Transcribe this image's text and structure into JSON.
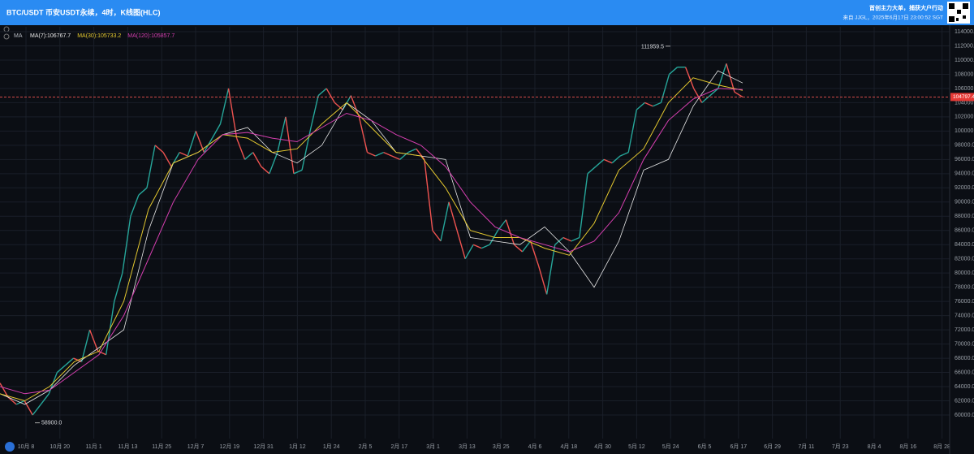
{
  "header": {
    "title": "BTC/USDT 币安USDT永续，4时，K线图(HLC)",
    "promo": "首创主力大单，捕获大户行动",
    "source": "来自 JJGL，2025年6月17日 23:00:52 SGT",
    "indicator": "MA"
  },
  "chart_data": {
    "type": "line",
    "color": "#26a69a",
    "values": [
      64500,
      62500,
      61500,
      62000,
      60000,
      61500,
      63000,
      66000,
      67000,
      68000,
      67500,
      72000,
      69000,
      68500,
      76000,
      80000,
      88000,
      91000,
      92000,
      98000,
      97000,
      95000,
      97000,
      96500,
      100000,
      97000,
      99000,
      101000,
      106000,
      99000,
      96000,
      97000,
      95000,
      94000,
      97000,
      102000,
      94000,
      94500,
      100000,
      105000,
      106000,
      104000,
      103000,
      105000,
      102000,
      97000,
      96500,
      97000,
      96500,
      96000,
      97000,
      97500,
      96000,
      86000,
      84500,
      90000,
      86000,
      82000,
      84000,
      83500,
      84000,
      86000,
      87500,
      84000,
      83000,
      84500,
      81000,
      77000,
      84000,
      85000,
      84500,
      85000,
      94000,
      95000,
      96000,
      95500,
      96500,
      97000,
      103000,
      104000,
      103500,
      104000,
      108000,
      109000,
      109000,
      106000,
      104000,
      105000,
      106000,
      109500,
      105500,
      104797.4
    ],
    "series": [
      {
        "name": "MA(7):106767.7",
        "color": "#e8e8e8",
        "values": [
          63000,
          61500,
          63500,
          67000,
          69500,
          72000,
          86000,
          95500,
          97000,
          99500,
          100500,
          97000,
          95500,
          98000,
          104000,
          101500,
          97000,
          96500,
          96000,
          85000,
          84500,
          84000,
          86500,
          83000,
          78000,
          84500,
          94500,
          96000,
          103500,
          108500,
          106767.7
        ]
      },
      {
        "name": "MA(30):105733.2",
        "color": "#e5c92f",
        "values": [
          63000,
          62000,
          64000,
          67500,
          69000,
          76000,
          89000,
          95500,
          97000,
          99500,
          99000,
          97000,
          97500,
          101000,
          104000,
          100500,
          97000,
          96500,
          92000,
          86000,
          85000,
          85000,
          83500,
          82500,
          87000,
          94500,
          97500,
          104000,
          107500,
          106500,
          105733.2
        ]
      },
      {
        "name": "MA(120):105857.7",
        "color": "#d63fb0",
        "values": [
          64000,
          63000,
          63500,
          66000,
          68500,
          74000,
          82000,
          90000,
          96000,
          99500,
          99800,
          99000,
          98500,
          100500,
          102500,
          101500,
          99500,
          98000,
          95000,
          90000,
          86500,
          85000,
          84000,
          83000,
          84500,
          88500,
          96000,
          101500,
          104500,
          106000,
          105857.7
        ]
      }
    ],
    "last_price": 104797.4,
    "annotations": [
      111959.5,
      {
        "value": 58900,
        "label": "58900.0"
      }
    ],
    "x_labels": [
      "10月 8",
      "10月 20",
      "11月 1",
      "11月 13",
      "11月 25",
      "12月 7",
      "12月 19",
      "12月 31",
      "1月 12",
      "1月 24",
      "2月 5",
      "2月 17",
      "3月 1",
      "3月 13",
      "3月 25",
      "4月 6",
      "4月 18",
      "4月 30",
      "5月 12",
      "5月 24",
      "6月 5",
      "6月 17",
      "6月 29",
      "7月 11",
      "7月 23",
      "8月 4",
      "8月 16",
      "8月 28"
    ],
    "ylim": [
      60000,
      114000
    ],
    "yticks": [
      {
        "value": 60000,
        "label": "60000.0"
      },
      {
        "value": 62000,
        "label": "62000.0"
      },
      {
        "value": 64000,
        "label": "64000.0"
      },
      {
        "value": 66000,
        "label": "66000.0"
      },
      {
        "value": 68000,
        "label": "68000.0"
      },
      {
        "value": 70000,
        "label": "70000.0"
      },
      {
        "value": 72000,
        "label": "72000.0"
      },
      {
        "value": 74000,
        "label": "74000.0"
      },
      {
        "value": 76000,
        "label": "76000.0"
      },
      {
        "value": 78000,
        "label": "78000.0"
      },
      {
        "value": 80000,
        "label": "80000.0"
      },
      {
        "value": 82000,
        "label": "82000.0"
      },
      {
        "value": 84000,
        "label": "84000.0"
      },
      {
        "value": 86000,
        "label": "86000.0"
      },
      {
        "value": 88000,
        "label": "88000.0"
      },
      {
        "value": 90000,
        "label": "90000.0"
      },
      {
        "value": 92000,
        "label": "92000.0"
      },
      {
        "value": 94000,
        "label": "94000.0"
      },
      {
        "value": 96000,
        "label": "96000.0"
      },
      {
        "value": 98000,
        "label": "98000.0"
      },
      {
        "value": 100000,
        "label": "100000.0"
      },
      {
        "value": 102000,
        "label": "102000.0"
      },
      {
        "value": 104000,
        "label": "104000.0"
      },
      {
        "value": 106000,
        "label": "106000.0"
      },
      {
        "value": 108000,
        "label": "108000.0"
      },
      {
        "value": 110000,
        "label": "110000.0"
      },
      {
        "value": 112000,
        "label": "112000.0"
      },
      {
        "value": 114000,
        "label": "114000.0"
      }
    ],
    "grid": true
  }
}
